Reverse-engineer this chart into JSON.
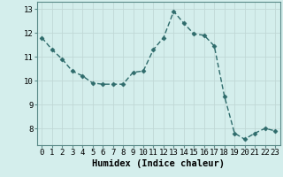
{
  "x": [
    0,
    1,
    2,
    3,
    4,
    5,
    6,
    7,
    8,
    9,
    10,
    11,
    12,
    13,
    14,
    15,
    16,
    17,
    18,
    19,
    20,
    21,
    22,
    23
  ],
  "y": [
    11.8,
    11.3,
    10.9,
    10.4,
    10.2,
    9.9,
    9.85,
    9.85,
    9.85,
    10.35,
    10.4,
    11.3,
    11.8,
    12.9,
    12.4,
    11.95,
    11.9,
    11.45,
    9.35,
    7.8,
    7.55,
    7.8,
    8.0,
    7.9
  ],
  "line_color": "#2e6b6b",
  "marker": "D",
  "marker_size": 2.5,
  "bg_color": "#d4eeec",
  "grid_color_major": "#c0d8d6",
  "grid_color_minor": "#e0f0ee",
  "xlabel": "Humidex (Indice chaleur)",
  "xlabel_fontsize": 7.5,
  "xlim": [
    -0.5,
    23.5
  ],
  "ylim": [
    7.3,
    13.3
  ],
  "yticks": [
    8,
    9,
    10,
    11,
    12,
    13
  ],
  "xticks": [
    0,
    1,
    2,
    3,
    4,
    5,
    6,
    7,
    8,
    9,
    10,
    11,
    12,
    13,
    14,
    15,
    16,
    17,
    18,
    19,
    20,
    21,
    22,
    23
  ],
  "tick_label_fontsize": 6.5,
  "spine_color": "#5a8a88",
  "linewidth": 1.0
}
